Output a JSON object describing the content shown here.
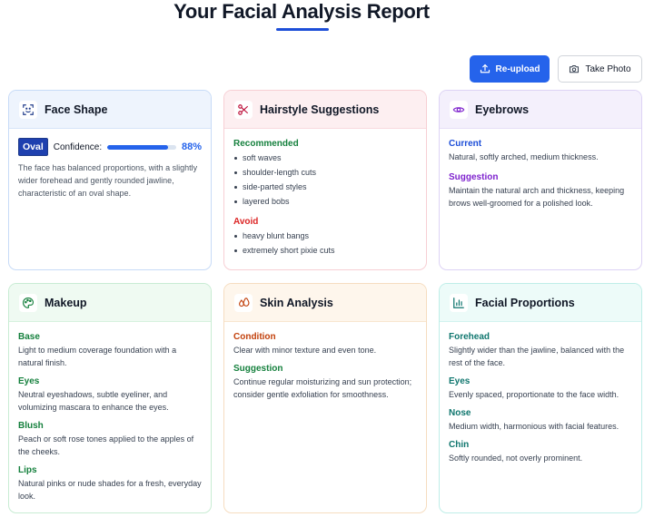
{
  "header": {
    "title": "Your Facial Analysis Report"
  },
  "actions": {
    "reupload_label": "Re-upload",
    "take_photo_label": "Take Photo",
    "reupload_icon": "upload-icon",
    "take_photo_icon": "camera-icon"
  },
  "colors": {
    "primary": "#2563eb",
    "badge": "#1e40af",
    "recommended": "#15803d",
    "avoid": "#dc2626",
    "suggestion": "#7e22ce"
  },
  "face_shape": {
    "title": "Face Shape",
    "icon": "face-scan-icon",
    "shape": "Oval",
    "confidence_label": "Confidence:",
    "confidence_value": "88%",
    "confidence_fraction": 0.88,
    "description": "The face has balanced proportions, with a slightly wider forehead and gently rounded jawline, characteristic of an oval shape."
  },
  "hairstyle": {
    "title": "Hairstyle Suggestions",
    "icon": "scissors-icon",
    "recommended_label": "Recommended",
    "recommended": [
      "soft waves",
      "shoulder-length cuts",
      "side-parted styles",
      "layered bobs"
    ],
    "avoid_label": "Avoid",
    "avoid": [
      "heavy blunt bangs",
      "extremely short pixie cuts"
    ]
  },
  "eyebrows": {
    "title": "Eyebrows",
    "icon": "eye-icon",
    "current_label": "Current",
    "current": "Natural, softly arched, medium thickness.",
    "suggestion_label": "Suggestion",
    "suggestion": "Maintain the natural arch and thickness, keeping brows well-groomed for a polished look."
  },
  "makeup": {
    "title": "Makeup",
    "icon": "palette-icon",
    "items": [
      {
        "label": "Base",
        "text": "Light to medium coverage foundation with a natural finish."
      },
      {
        "label": "Eyes",
        "text": "Neutral eyeshadows, subtle eyeliner, and volumizing mascara to enhance the eyes."
      },
      {
        "label": "Blush",
        "text": "Peach or soft rose tones applied to the apples of the cheeks."
      },
      {
        "label": "Lips",
        "text": "Natural pinks or nude shades for a fresh, everyday look."
      }
    ]
  },
  "skin": {
    "title": "Skin Analysis",
    "icon": "droplets-icon",
    "condition_label": "Condition",
    "condition": "Clear with minor texture and even tone.",
    "suggestion_label": "Suggestion",
    "suggestion": "Continue regular moisturizing and sun protection; consider gentle exfoliation for smoothness."
  },
  "proportions": {
    "title": "Facial Proportions",
    "icon": "bar-chart-icon",
    "items": [
      {
        "label": "Forehead",
        "text": "Slightly wider than the jawline, balanced with the rest of the face."
      },
      {
        "label": "Eyes",
        "text": "Evenly spaced, proportionate to the face width."
      },
      {
        "label": "Nose",
        "text": "Medium width, harmonious with facial features."
      },
      {
        "label": "Chin",
        "text": "Softly rounded, not overly prominent."
      }
    ]
  }
}
